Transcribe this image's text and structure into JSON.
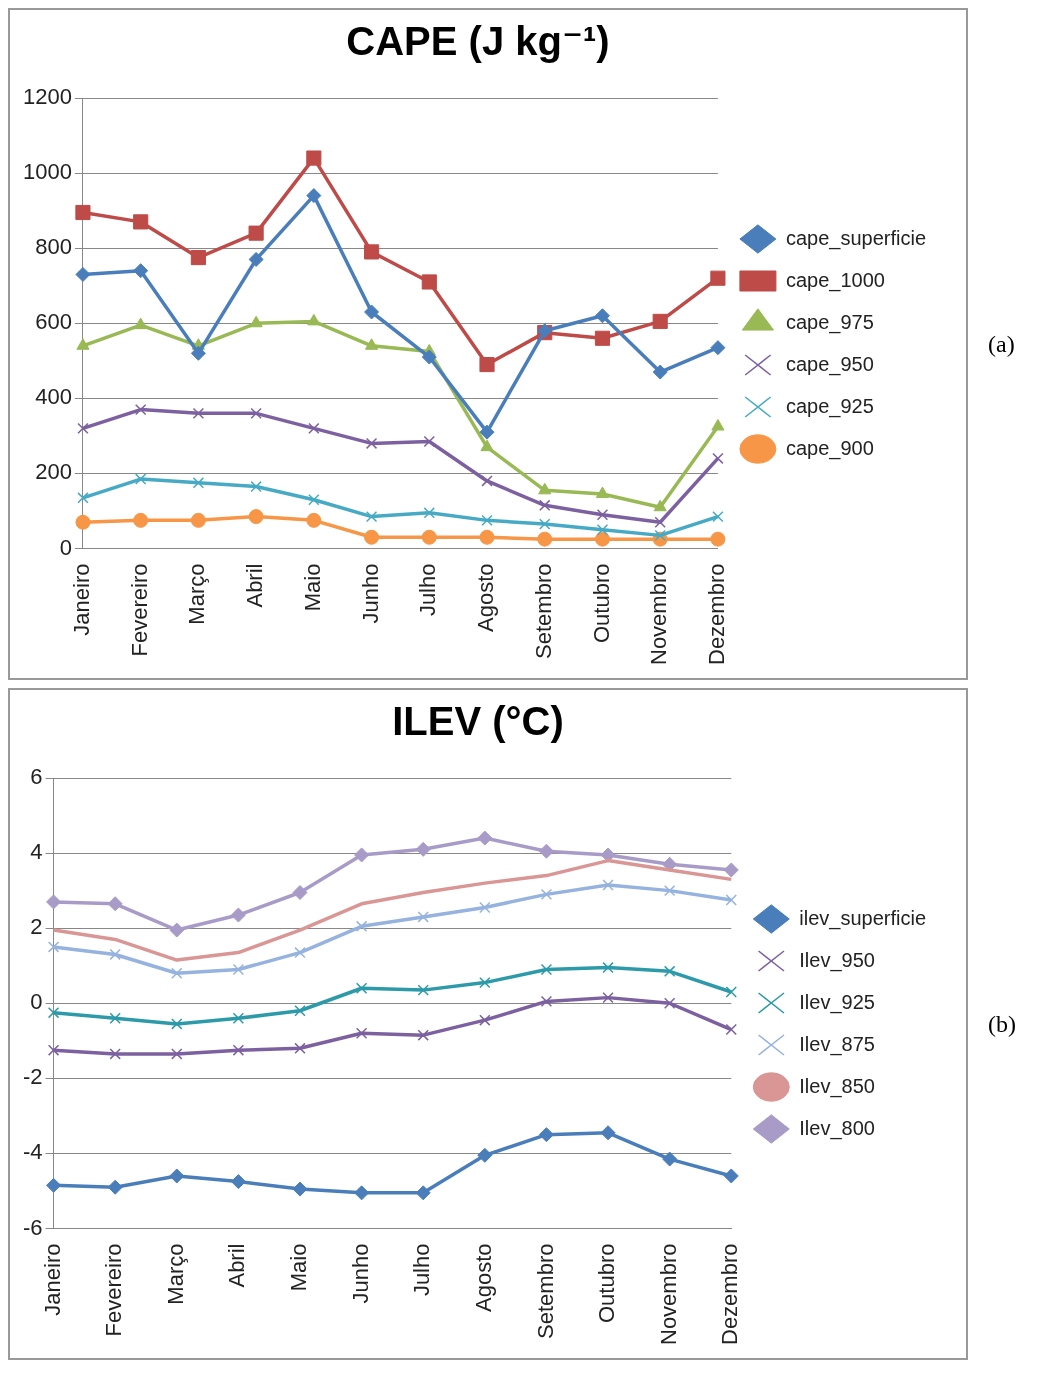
{
  "chart_data": [
    {
      "type": "line",
      "title": "CAPE (J kg⁻¹)",
      "categories": [
        "Janeiro",
        "Fevereiro",
        "Março",
        "Abril",
        "Maio",
        "Junho",
        "Julho",
        "Agosto",
        "Setembro",
        "Outubro",
        "Novembro",
        "Dezembro"
      ],
      "ylim": [
        0,
        1200
      ],
      "yticks": [
        0,
        200,
        400,
        600,
        800,
        1000,
        1200
      ],
      "grid": "y",
      "legend": "right",
      "annotations": [
        "(a)"
      ],
      "series": [
        {
          "name": "cape_superficie",
          "color": "#4a7ebb",
          "marker": "diamond",
          "values": [
            730,
            740,
            520,
            770,
            940,
            630,
            510,
            310,
            580,
            620,
            470,
            535
          ]
        },
        {
          "name": "cape_1000",
          "color": "#be4b48",
          "marker": "square",
          "values": [
            895,
            870,
            775,
            840,
            1040,
            790,
            710,
            490,
            575,
            560,
            605,
            720
          ]
        },
        {
          "name": "cape_975",
          "color": "#98b954",
          "marker": "triangle",
          "values": [
            540,
            595,
            540,
            600,
            605,
            540,
            525,
            270,
            155,
            145,
            110,
            325
          ]
        },
        {
          "name": "cape_950",
          "color": "#7d60a0",
          "marker": "cross",
          "values": [
            320,
            370,
            360,
            360,
            320,
            280,
            285,
            180,
            115,
            90,
            70,
            240
          ]
        },
        {
          "name": "cape_925",
          "color": "#46aac5",
          "marker": "cross",
          "values": [
            135,
            185,
            175,
            165,
            130,
            85,
            95,
            75,
            65,
            50,
            35,
            85
          ]
        },
        {
          "name": "cape_900",
          "color": "#f79646",
          "marker": "circle",
          "values": [
            70,
            75,
            75,
            85,
            75,
            30,
            30,
            30,
            25,
            25,
            25,
            25
          ]
        }
      ]
    },
    {
      "type": "line",
      "title": "ILEV (°C)",
      "categories": [
        "Janeiro",
        "Fevereiro",
        "Março",
        "Abril",
        "Maio",
        "Junho",
        "Julho",
        "Agosto",
        "Setembro",
        "Outubro",
        "Novembro",
        "Dezembro"
      ],
      "ylim": [
        -6,
        6
      ],
      "yticks": [
        -6,
        -4,
        -2,
        0,
        2,
        4,
        6
      ],
      "grid": "y",
      "legend": "right",
      "annotations": [
        "(b)"
      ],
      "series": [
        {
          "name": "ilev_superficie",
          "color": "#4a7ebb",
          "marker": "diamond",
          "values": [
            -4.85,
            -4.9,
            -4.6,
            -4.75,
            -4.95,
            -5.05,
            -5.05,
            -4.05,
            -3.5,
            -3.45,
            -4.15,
            -4.6
          ]
        },
        {
          "name": "Ilev_950",
          "color": "#7d60a0",
          "marker": "cross",
          "values": [
            -1.25,
            -1.35,
            -1.35,
            -1.25,
            -1.2,
            -0.8,
            -0.85,
            -0.45,
            0.05,
            0.15,
            0.0,
            -0.7
          ]
        },
        {
          "name": "Ilev_925",
          "color": "#2c9aa8",
          "marker": "cross",
          "values": [
            -0.25,
            -0.4,
            -0.55,
            -0.4,
            -0.2,
            0.4,
            0.35,
            0.55,
            0.9,
            0.95,
            0.85,
            0.3
          ]
        },
        {
          "name": "Ilev_875",
          "color": "#95b3de",
          "marker": "cross",
          "values": [
            1.5,
            1.3,
            0.8,
            0.9,
            1.35,
            2.05,
            2.3,
            2.55,
            2.9,
            3.15,
            3.0,
            2.75
          ]
        },
        {
          "name": "Ilev_850",
          "color": "#d99694",
          "marker": "none",
          "values": [
            1.95,
            1.7,
            1.15,
            1.35,
            1.95,
            2.65,
            2.95,
            3.2,
            3.4,
            3.8,
            3.55,
            3.3
          ]
        },
        {
          "name": "Ilev_800",
          "color": "#a99bc7",
          "marker": "diamond",
          "values": [
            2.7,
            2.65,
            1.95,
            2.35,
            2.95,
            3.95,
            4.1,
            4.4,
            4.05,
            3.95,
            3.7,
            3.55
          ]
        }
      ]
    }
  ]
}
